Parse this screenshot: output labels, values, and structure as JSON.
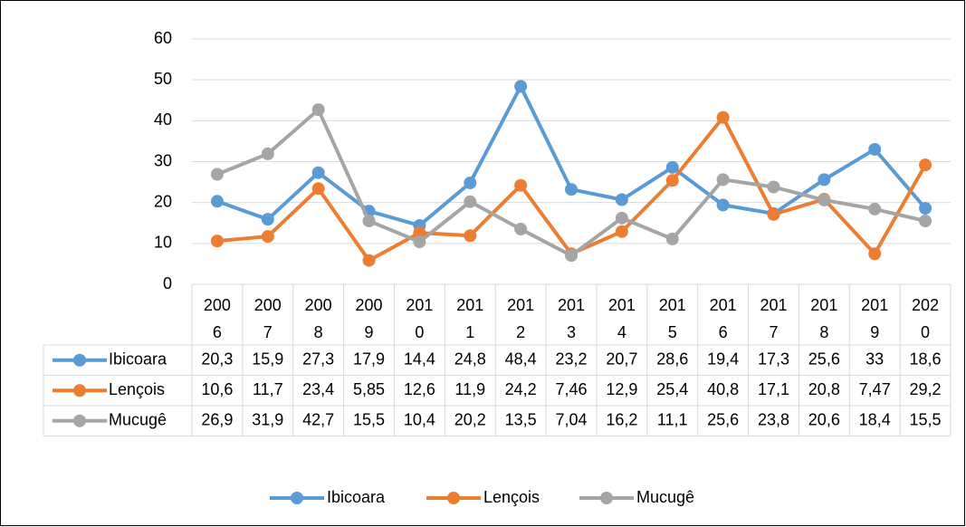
{
  "chart_data": {
    "type": "line",
    "categories": [
      "2006",
      "2007",
      "2008",
      "2009",
      "2010",
      "2011",
      "2012",
      "2013",
      "2014",
      "2015",
      "2016",
      "2017",
      "2018",
      "2019",
      "2020"
    ],
    "series": [
      {
        "name": "Ibicoara",
        "color": "#5b9bd5",
        "values": [
          20.3,
          15.9,
          27.3,
          17.9,
          14.4,
          24.8,
          48.4,
          23.2,
          20.7,
          28.6,
          19.4,
          17.3,
          25.6,
          33,
          18.6
        ],
        "value_labels": [
          "20,3",
          "15,9",
          "27,3",
          "17,9",
          "14,4",
          "24,8",
          "48,4",
          "23,2",
          "20,7",
          "28,6",
          "19,4",
          "17,3",
          "25,6",
          "33",
          "18,6"
        ]
      },
      {
        "name": "Lençois",
        "color": "#ed7d31",
        "values": [
          10.6,
          11.7,
          23.4,
          5.85,
          12.6,
          11.9,
          24.2,
          7.46,
          12.9,
          25.4,
          40.8,
          17.1,
          20.8,
          7.47,
          29.2
        ],
        "value_labels": [
          "10,6",
          "11,7",
          "23,4",
          "5,85",
          "12,6",
          "11,9",
          "24,2",
          "7,46",
          "12,9",
          "25,4",
          "40,8",
          "17,1",
          "20,8",
          "7,47",
          "29,2"
        ]
      },
      {
        "name": "Mucugê",
        "color": "#a5a5a5",
        "values": [
          26.9,
          31.9,
          42.7,
          15.5,
          10.4,
          20.2,
          13.5,
          7.04,
          16.2,
          11.1,
          25.6,
          23.8,
          20.6,
          18.4,
          15.5
        ],
        "value_labels": [
          "26,9",
          "31,9",
          "42,7",
          "15,5",
          "10,4",
          "20,2",
          "13,5",
          "7,04",
          "16,2",
          "11,1",
          "25,6",
          "23,8",
          "20,6",
          "18,4",
          "15,5"
        ]
      }
    ],
    "ylim": [
      0,
      60
    ],
    "yticks": [
      0,
      10,
      20,
      30,
      40,
      50,
      60
    ],
    "grid": true,
    "data_table": true,
    "legend": "bottom"
  }
}
